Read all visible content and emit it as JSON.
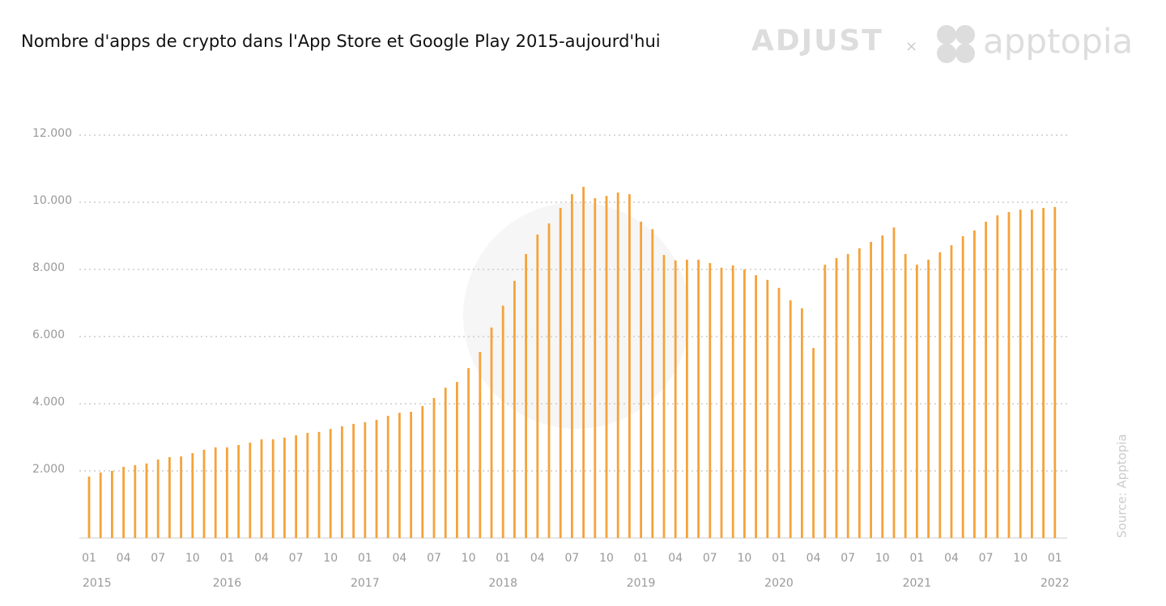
{
  "chart_data": {
    "type": "bar",
    "title": "Nombre d'apps de crypto dans l'App Store et Google Play 2015-aujourd'hui",
    "brand_left": "ADJUST",
    "brand_separator": "×",
    "brand_right": "apptopia",
    "source": "Source: Apptopia",
    "color": "#f5a33b",
    "grid": true,
    "ylim": [
      0,
      12000
    ],
    "yticks": [
      {
        "value": 2000,
        "label": "2.000"
      },
      {
        "value": 4000,
        "label": "4.000"
      },
      {
        "value": 6000,
        "label": "6.000"
      },
      {
        "value": 8000,
        "label": "8.000"
      },
      {
        "value": 10000,
        "label": "10.000"
      },
      {
        "value": 12000,
        "label": "12.000"
      }
    ],
    "categories": [
      "01",
      null,
      null,
      "04",
      null,
      null,
      "07",
      null,
      null,
      "10",
      null,
      null,
      "01",
      null,
      null,
      "04",
      null,
      null,
      "07",
      null,
      null,
      "10",
      null,
      null,
      "01",
      null,
      null,
      "04",
      null,
      null,
      "07",
      null,
      null,
      "10",
      null,
      null,
      "01",
      null,
      null,
      "04",
      null,
      null,
      "07",
      null,
      null,
      "10",
      null,
      null,
      "01",
      null,
      null,
      "04",
      null,
      null,
      "07",
      null,
      null,
      "10",
      null,
      null,
      "01",
      null,
      null,
      "04",
      null,
      null,
      "07",
      null,
      null,
      "10",
      null,
      null,
      "01",
      null,
      null,
      "04",
      null,
      null,
      "07",
      null,
      null,
      "10",
      null,
      null,
      "01"
    ],
    "year_labels": [
      "2015",
      "2016",
      "2017",
      "2018",
      "2019",
      "2020",
      "2021",
      "2022"
    ],
    "values": [
      1830,
      1950,
      2000,
      2120,
      2170,
      2220,
      2340,
      2410,
      2430,
      2530,
      2630,
      2700,
      2700,
      2770,
      2840,
      2940,
      2940,
      2990,
      3060,
      3130,
      3160,
      3250,
      3330,
      3400,
      3450,
      3520,
      3640,
      3730,
      3760,
      3930,
      4170,
      4480,
      4650,
      5060,
      5540,
      6270,
      6920,
      7660,
      8460,
      9040,
      9370,
      9830,
      10240,
      10460,
      10120,
      10190,
      10290,
      10240,
      9420,
      9200,
      8430,
      8270,
      8290,
      8290,
      8190,
      8050,
      8120,
      8000,
      7830,
      7690,
      7450,
      7080,
      6840,
      5660,
      8140,
      8340,
      8460,
      8630,
      8820,
      9010,
      9250,
      8460,
      8140,
      8290,
      8510,
      8720,
      8990,
      9160,
      9420,
      9610,
      9710,
      9780,
      9780,
      9830,
      9860
    ]
  }
}
